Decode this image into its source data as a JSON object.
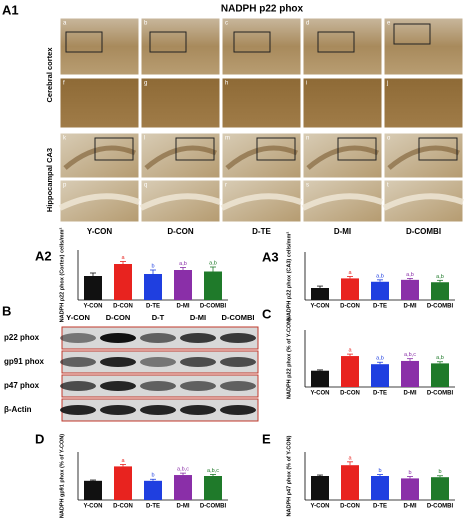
{
  "figure": {
    "panel_a1": "A1",
    "title": "NADPH p22 phox",
    "row_labels": [
      "Cerebral cortex",
      "Hippocampal CA3"
    ],
    "micrograph_labels": [
      "a",
      "b",
      "c",
      "d",
      "e",
      "f",
      "g",
      "h",
      "i",
      "j",
      "k",
      "l",
      "m",
      "n",
      "o",
      "p",
      "q",
      "r",
      "s",
      "t"
    ],
    "columns": [
      "Y-CON",
      "D-CON",
      "D-TE",
      "D-MI",
      "D-COMBI"
    ],
    "panel_b": "B",
    "blot_columns": [
      "Y-CON",
      "D-CON",
      "D-T",
      "D-MI",
      "D-COMBI"
    ],
    "blot_rows": [
      "p22 phox",
      "gp91 phox",
      "p47 phox",
      "β-Actin"
    ]
  },
  "chart_data": [
    {
      "type": "bar",
      "panel": "A2",
      "ylabel": "NADPH p22 phox (Cortex) cells/mm²",
      "categories": [
        "Y-CON",
        "D-CON",
        "D-TE",
        "D-MI",
        "D-COMBI"
      ],
      "values": [
        0.48,
        0.72,
        0.52,
        0.6,
        0.57
      ],
      "errors": [
        0.06,
        0.05,
        0.08,
        0.05,
        0.09
      ],
      "annotations": [
        null,
        "a",
        "b",
        "a,b",
        "a,b"
      ],
      "colors": [
        "#111111",
        "#e8231f",
        "#1f3fe0",
        "#8a2fa8",
        "#1f7a2a"
      ],
      "ylim": [
        0,
        1
      ]
    },
    {
      "type": "bar",
      "panel": "A3",
      "ylabel": "NADPH p22 phox (CA3) cells/mm²",
      "categories": [
        "Y-CON",
        "D-CON",
        "D-TE",
        "D-MI",
        "D-COMBI"
      ],
      "values": [
        0.25,
        0.45,
        0.38,
        0.42,
        0.37
      ],
      "errors": [
        0.04,
        0.04,
        0.04,
        0.03,
        0.04
      ],
      "annotations": [
        null,
        "a",
        "a,b",
        "a,b",
        "a,b"
      ],
      "colors": [
        "#111111",
        "#e8231f",
        "#1f3fe0",
        "#8a2fa8",
        "#1f7a2a"
      ],
      "ylim": [
        0,
        1
      ]
    },
    {
      "type": "bar",
      "panel": "C",
      "ylabel": "NADPH p22 phox (% of Y-CON)",
      "categories": [
        "Y-CON",
        "D-CON",
        "D-TE",
        "D-MI",
        "D-COMBI"
      ],
      "values": [
        100,
        190,
        140,
        160,
        145
      ],
      "errors": [
        5,
        12,
        12,
        14,
        10
      ],
      "annotations": [
        null,
        "a",
        "a,b",
        "a,b,c",
        "a,b"
      ],
      "colors": [
        "#111111",
        "#e8231f",
        "#1f3fe0",
        "#8a2fa8",
        "#1f7a2a"
      ],
      "ylim": [
        0,
        350
      ]
    },
    {
      "type": "bar",
      "panel": "D",
      "ylabel": "NADPH gp91 phox (% of Y-CON)",
      "categories": [
        "Y-CON",
        "D-CON",
        "D-TE",
        "D-MI",
        "D-COMBI"
      ],
      "values": [
        100,
        175,
        100,
        130,
        125
      ],
      "errors": [
        4,
        10,
        8,
        10,
        8
      ],
      "annotations": [
        null,
        "a",
        "b",
        "a,b,c",
        "a,b,c"
      ],
      "colors": [
        "#111111",
        "#e8231f",
        "#1f3fe0",
        "#8a2fa8",
        "#1f7a2a"
      ],
      "ylim": [
        0,
        250
      ]
    },
    {
      "type": "bar",
      "panel": "E",
      "ylabel": "NADPH p47 phox (% of Y-CON)",
      "categories": [
        "Y-CON",
        "D-CON",
        "D-TE",
        "D-MI",
        "D-COMBI"
      ],
      "values": [
        100,
        145,
        100,
        90,
        95
      ],
      "errors": [
        4,
        14,
        6,
        8,
        6
      ],
      "annotations": [
        null,
        "a",
        "b",
        "b",
        "b"
      ],
      "colors": [
        "#111111",
        "#e8231f",
        "#1f3fe0",
        "#8a2fa8",
        "#1f7a2a"
      ],
      "ylim": [
        0,
        200
      ]
    }
  ]
}
